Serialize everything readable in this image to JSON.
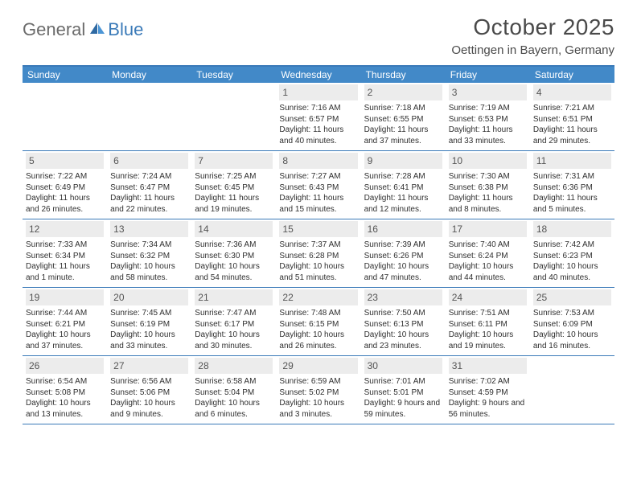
{
  "logo": {
    "text1": "General",
    "text2": "Blue"
  },
  "title": "October 2025",
  "location": "Oettingen in Bayern, Germany",
  "colors": {
    "header_bg": "#4289c8",
    "border": "#3a7ab8",
    "daynum_bg": "#ececec",
    "text": "#333333",
    "logo_gray": "#6b6b6b",
    "logo_blue": "#3a7ab8"
  },
  "day_headers": [
    "Sunday",
    "Monday",
    "Tuesday",
    "Wednesday",
    "Thursday",
    "Friday",
    "Saturday"
  ],
  "weeks": [
    [
      null,
      null,
      null,
      {
        "n": "1",
        "sr": "7:16 AM",
        "ss": "6:57 PM",
        "dl": "11 hours and 40 minutes."
      },
      {
        "n": "2",
        "sr": "7:18 AM",
        "ss": "6:55 PM",
        "dl": "11 hours and 37 minutes."
      },
      {
        "n": "3",
        "sr": "7:19 AM",
        "ss": "6:53 PM",
        "dl": "11 hours and 33 minutes."
      },
      {
        "n": "4",
        "sr": "7:21 AM",
        "ss": "6:51 PM",
        "dl": "11 hours and 29 minutes."
      }
    ],
    [
      {
        "n": "5",
        "sr": "7:22 AM",
        "ss": "6:49 PM",
        "dl": "11 hours and 26 minutes."
      },
      {
        "n": "6",
        "sr": "7:24 AM",
        "ss": "6:47 PM",
        "dl": "11 hours and 22 minutes."
      },
      {
        "n": "7",
        "sr": "7:25 AM",
        "ss": "6:45 PM",
        "dl": "11 hours and 19 minutes."
      },
      {
        "n": "8",
        "sr": "7:27 AM",
        "ss": "6:43 PM",
        "dl": "11 hours and 15 minutes."
      },
      {
        "n": "9",
        "sr": "7:28 AM",
        "ss": "6:41 PM",
        "dl": "11 hours and 12 minutes."
      },
      {
        "n": "10",
        "sr": "7:30 AM",
        "ss": "6:38 PM",
        "dl": "11 hours and 8 minutes."
      },
      {
        "n": "11",
        "sr": "7:31 AM",
        "ss": "6:36 PM",
        "dl": "11 hours and 5 minutes."
      }
    ],
    [
      {
        "n": "12",
        "sr": "7:33 AM",
        "ss": "6:34 PM",
        "dl": "11 hours and 1 minute."
      },
      {
        "n": "13",
        "sr": "7:34 AM",
        "ss": "6:32 PM",
        "dl": "10 hours and 58 minutes."
      },
      {
        "n": "14",
        "sr": "7:36 AM",
        "ss": "6:30 PM",
        "dl": "10 hours and 54 minutes."
      },
      {
        "n": "15",
        "sr": "7:37 AM",
        "ss": "6:28 PM",
        "dl": "10 hours and 51 minutes."
      },
      {
        "n": "16",
        "sr": "7:39 AM",
        "ss": "6:26 PM",
        "dl": "10 hours and 47 minutes."
      },
      {
        "n": "17",
        "sr": "7:40 AM",
        "ss": "6:24 PM",
        "dl": "10 hours and 44 minutes."
      },
      {
        "n": "18",
        "sr": "7:42 AM",
        "ss": "6:23 PM",
        "dl": "10 hours and 40 minutes."
      }
    ],
    [
      {
        "n": "19",
        "sr": "7:44 AM",
        "ss": "6:21 PM",
        "dl": "10 hours and 37 minutes."
      },
      {
        "n": "20",
        "sr": "7:45 AM",
        "ss": "6:19 PM",
        "dl": "10 hours and 33 minutes."
      },
      {
        "n": "21",
        "sr": "7:47 AM",
        "ss": "6:17 PM",
        "dl": "10 hours and 30 minutes."
      },
      {
        "n": "22",
        "sr": "7:48 AM",
        "ss": "6:15 PM",
        "dl": "10 hours and 26 minutes."
      },
      {
        "n": "23",
        "sr": "7:50 AM",
        "ss": "6:13 PM",
        "dl": "10 hours and 23 minutes."
      },
      {
        "n": "24",
        "sr": "7:51 AM",
        "ss": "6:11 PM",
        "dl": "10 hours and 19 minutes."
      },
      {
        "n": "25",
        "sr": "7:53 AM",
        "ss": "6:09 PM",
        "dl": "10 hours and 16 minutes."
      }
    ],
    [
      {
        "n": "26",
        "sr": "6:54 AM",
        "ss": "5:08 PM",
        "dl": "10 hours and 13 minutes."
      },
      {
        "n": "27",
        "sr": "6:56 AM",
        "ss": "5:06 PM",
        "dl": "10 hours and 9 minutes."
      },
      {
        "n": "28",
        "sr": "6:58 AM",
        "ss": "5:04 PM",
        "dl": "10 hours and 6 minutes."
      },
      {
        "n": "29",
        "sr": "6:59 AM",
        "ss": "5:02 PM",
        "dl": "10 hours and 3 minutes."
      },
      {
        "n": "30",
        "sr": "7:01 AM",
        "ss": "5:01 PM",
        "dl": "9 hours and 59 minutes."
      },
      {
        "n": "31",
        "sr": "7:02 AM",
        "ss": "4:59 PM",
        "dl": "9 hours and 56 minutes."
      },
      null
    ]
  ],
  "labels": {
    "sunrise": "Sunrise: ",
    "sunset": "Sunset: ",
    "daylight": "Daylight: "
  }
}
